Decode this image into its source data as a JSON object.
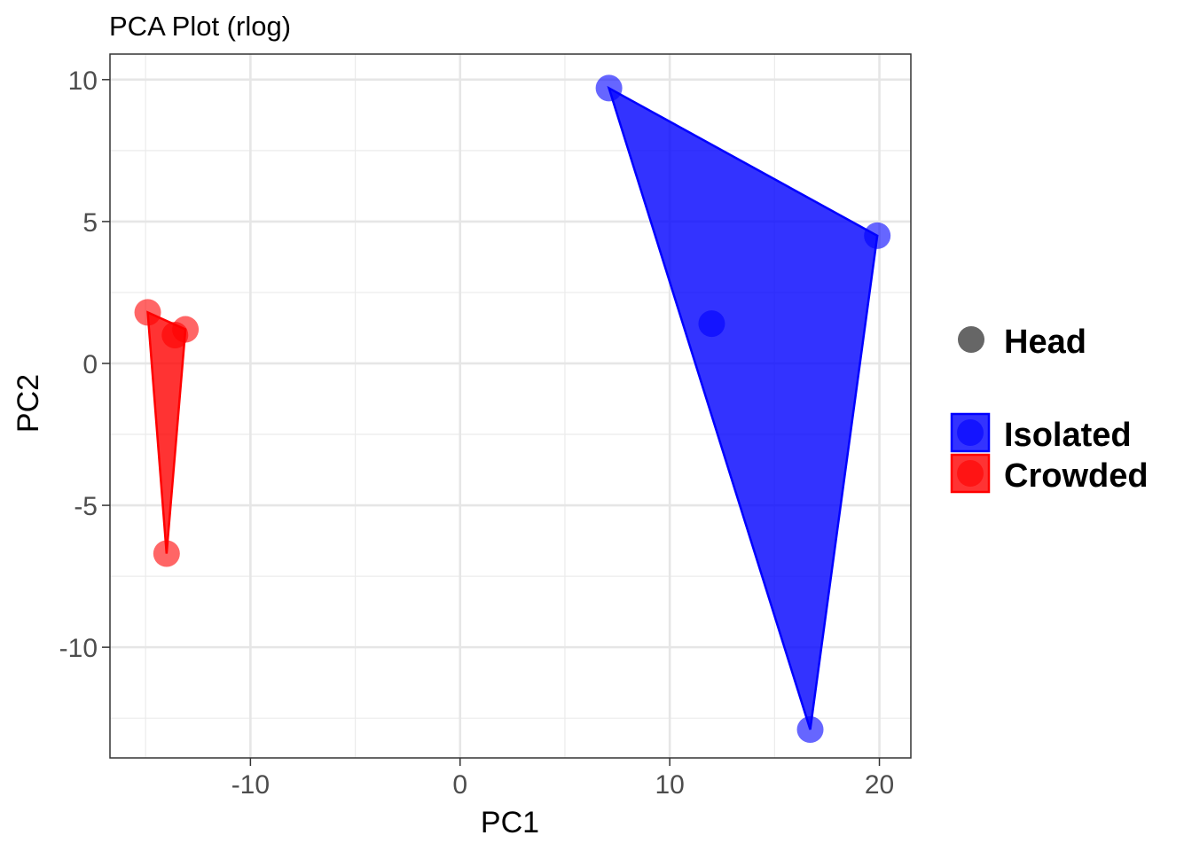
{
  "chart_data": {
    "type": "scatter",
    "title": "PCA Plot (rlog)",
    "xlabel": "PC1",
    "ylabel": "PC2",
    "xlim": [
      -16.7,
      21.5
    ],
    "ylim": [
      -13.9,
      10.9
    ],
    "x_ticks": [
      -10,
      0,
      10,
      20
    ],
    "y_ticks": [
      10,
      5,
      0,
      -5,
      -10
    ],
    "x_tick_labels": [
      "-10",
      "0",
      "10",
      "20"
    ],
    "y_tick_labels": [
      "10",
      "5",
      "0",
      "-5",
      "-10"
    ],
    "grid": true,
    "legend_position": "right",
    "shape_legend": {
      "label": "Head",
      "color": "#666666"
    },
    "series": [
      {
        "name": "Isolated",
        "color": "#0000ff",
        "points": [
          {
            "x": 7.1,
            "y": 9.7
          },
          {
            "x": 19.9,
            "y": 4.5
          },
          {
            "x": 12.0,
            "y": 1.4
          },
          {
            "x": 16.7,
            "y": -12.9
          }
        ]
      },
      {
        "name": "Crowded",
        "color": "#ff0000",
        "points": [
          {
            "x": -14.9,
            "y": 1.8
          },
          {
            "x": -13.1,
            "y": 1.2
          },
          {
            "x": -13.6,
            "y": 1.0
          },
          {
            "x": -14.0,
            "y": -6.7
          }
        ]
      }
    ]
  }
}
